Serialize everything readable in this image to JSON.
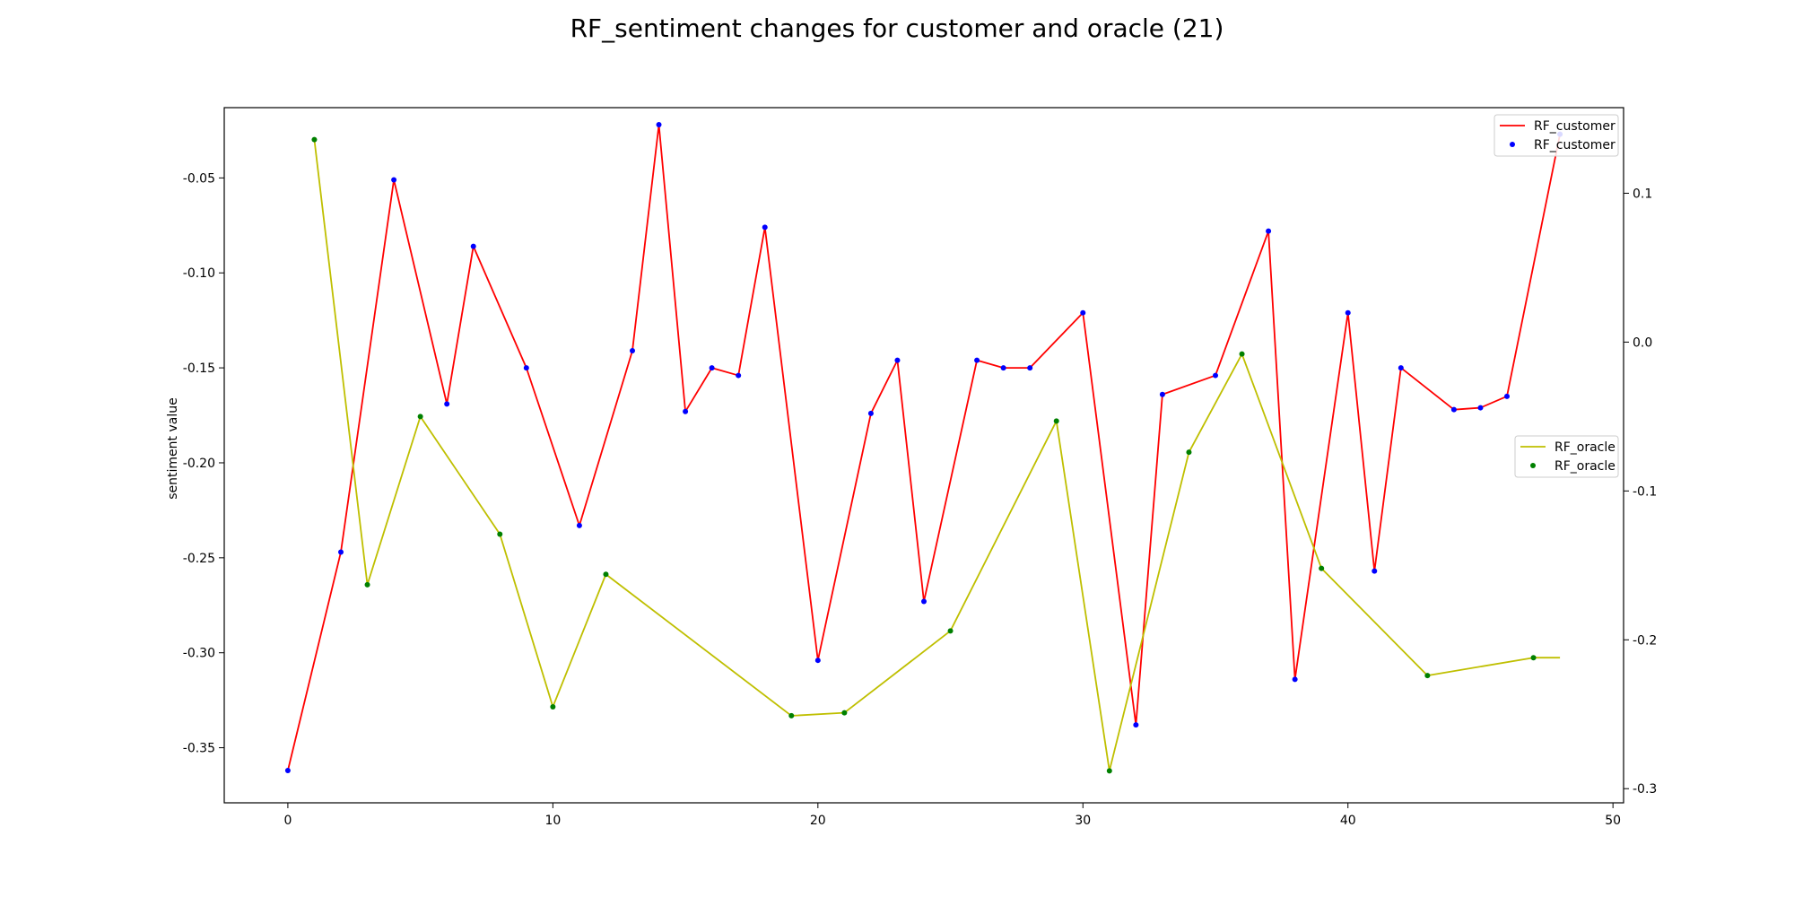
{
  "chart_data": {
    "type": "line",
    "title": "RF_sentiment changes for customer and oracle (21)",
    "xlabel": "",
    "ylabel": "sentiment value",
    "y2label": "",
    "xlim": [
      -2.4,
      50.4
    ],
    "ylim": [
      -0.379,
      -0.013
    ],
    "y2lim": [
      -0.3095,
      0.1575
    ],
    "xticks": [
      0,
      10,
      20,
      30,
      40,
      50
    ],
    "yticks": [
      -0.35,
      -0.3,
      -0.25,
      -0.2,
      -0.15,
      -0.1,
      -0.05
    ],
    "y2ticks": [
      -0.3,
      -0.2,
      -0.1,
      0.0,
      0.1
    ],
    "grid": false,
    "series": [
      {
        "name": "RF_customer",
        "axis": "left",
        "line_color": "#ff0000",
        "marker_color": "#0000ff",
        "x": [
          0,
          2,
          4,
          6,
          7,
          9,
          11,
          13,
          14,
          15,
          16,
          17,
          18,
          20,
          22,
          23,
          24,
          26,
          27,
          28,
          30,
          32,
          33,
          35,
          37,
          38,
          40,
          41,
          42,
          44,
          45,
          46,
          48
        ],
        "y": [
          -0.362,
          -0.247,
          -0.051,
          -0.169,
          -0.086,
          -0.15,
          -0.233,
          -0.141,
          -0.022,
          -0.173,
          -0.15,
          -0.154,
          -0.076,
          -0.304,
          -0.174,
          -0.146,
          -0.273,
          -0.146,
          -0.15,
          -0.15,
          -0.121,
          -0.338,
          -0.164,
          -0.154,
          -0.078,
          -0.314,
          -0.121,
          -0.257,
          -0.15,
          -0.172,
          -0.171,
          -0.165,
          -0.027
        ]
      },
      {
        "name": "RF_oracle",
        "axis": "right",
        "line_color": "#bfbf00",
        "marker_color": "#008000",
        "x": [
          1,
          3,
          5,
          8,
          10,
          12,
          19,
          21,
          25,
          29,
          31,
          34,
          36,
          39,
          43,
          47,
          48
        ],
        "y": [
          0.136,
          -0.163,
          -0.05,
          -0.129,
          -0.245,
          -0.156,
          -0.251,
          -0.249,
          -0.194,
          -0.053,
          -0.288,
          -0.074,
          -0.008,
          -0.152,
          -0.224,
          -0.212,
          -0.212
        ],
        "markers_on": [
          true,
          true,
          true,
          true,
          true,
          true,
          true,
          true,
          true,
          true,
          true,
          true,
          true,
          true,
          true,
          true,
          false
        ]
      }
    ],
    "legends": [
      {
        "placement": "top-right",
        "entries": [
          "RF_customer",
          "RF_customer"
        ]
      },
      {
        "placement": "center-right",
        "entries": [
          "RF_oracle",
          "RF_oracle"
        ]
      }
    ]
  }
}
